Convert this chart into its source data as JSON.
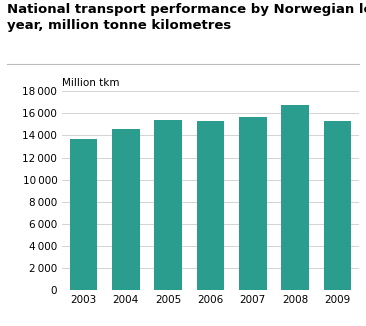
{
  "title_line1": "National transport performance by Norwegian lorries,",
  "title_line2": "year, million tonne kilometres",
  "ylabel": "Million tkm",
  "categories": [
    "2003",
    "2004",
    "2005",
    "2006",
    "2007",
    "2008",
    "2009"
  ],
  "values": [
    13700,
    14600,
    15400,
    15300,
    15700,
    16800,
    15300
  ],
  "bar_color": "#2a9d8f",
  "ylim": [
    0,
    18000
  ],
  "yticks": [
    0,
    2000,
    4000,
    6000,
    8000,
    10000,
    12000,
    14000,
    16000,
    18000
  ],
  "background_color": "#ffffff",
  "grid_color": "#cccccc",
  "title_fontsize": 9.5,
  "ylabel_fontsize": 7.5,
  "tick_fontsize": 7.5
}
